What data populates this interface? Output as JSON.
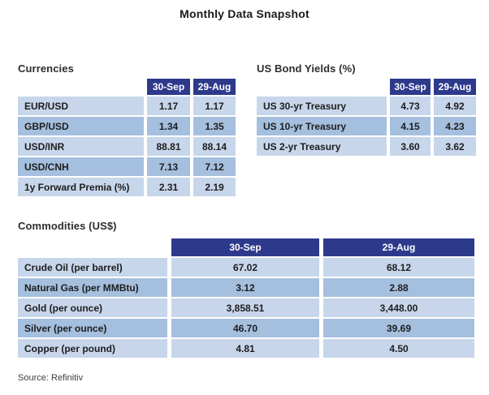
{
  "title": "Monthly Data Snapshot",
  "source": "Source: Refinitiv",
  "colors": {
    "header_bg": "#2d3a8c",
    "header_text": "#ffffff",
    "row_light": "#c7d6ea",
    "row_medium": "#a5bfde",
    "text": "#1d1d1f"
  },
  "chart_data": [
    {
      "type": "table",
      "title": "Currencies",
      "columns": [
        "",
        "30-Sep",
        "29-Aug"
      ],
      "rows": [
        [
          "EUR/USD",
          "1.17",
          "1.17"
        ],
        [
          "GBP/USD",
          "1.34",
          "1.35"
        ],
        [
          "USD/INR",
          "88.81",
          "88.14"
        ],
        [
          "USD/CNH",
          "7.13",
          "7.12"
        ],
        [
          "1y Forward Premia (%)",
          "2.31",
          "2.19"
        ]
      ]
    },
    {
      "type": "table",
      "title": "US Bond Yields (%)",
      "columns": [
        "",
        "30-Sep",
        "29-Aug"
      ],
      "rows": [
        [
          "US 30-yr Treasury",
          "4.73",
          "4.92"
        ],
        [
          "US 10-yr Treasury",
          "4.15",
          "4.23"
        ],
        [
          "US 2-yr Treasury",
          "3.60",
          "3.62"
        ]
      ]
    },
    {
      "type": "table",
      "title": "Commodities (US$)",
      "columns": [
        "",
        "30-Sep",
        "29-Aug"
      ],
      "rows": [
        [
          "Crude Oil (per barrel)",
          "67.02",
          "68.12"
        ],
        [
          "Natural Gas (per MMBtu)",
          "3.12",
          "2.88"
        ],
        [
          "Gold (per ounce)",
          "3,858.51",
          "3,448.00"
        ],
        [
          "Silver (per ounce)",
          "46.70",
          "39.69"
        ],
        [
          "Copper (per pound)",
          "4.81",
          "4.50"
        ]
      ]
    }
  ]
}
